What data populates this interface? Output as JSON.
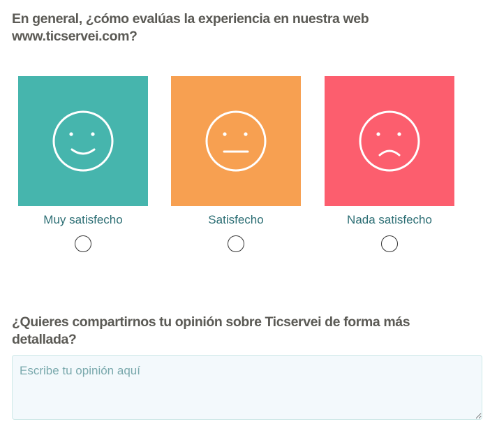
{
  "question1": "En general, ¿cómo evalúas la experiencia en nuestra web www.ticservei.com?",
  "options": [
    {
      "label": "Muy satisfecho",
      "color": "#46b5ad",
      "icon": "happy-face-icon"
    },
    {
      "label": "Satisfecho",
      "color": "#f7a051",
      "icon": "neutral-face-icon"
    },
    {
      "label": "Nada satisfecho",
      "color": "#fc5e6e",
      "icon": "sad-face-icon"
    }
  ],
  "question2": "¿Quieres compartirnos tu opinión sobre Ticservei de forma más detallada?",
  "opinion": {
    "placeholder": "Escribe tu opinión aquí",
    "value": ""
  }
}
